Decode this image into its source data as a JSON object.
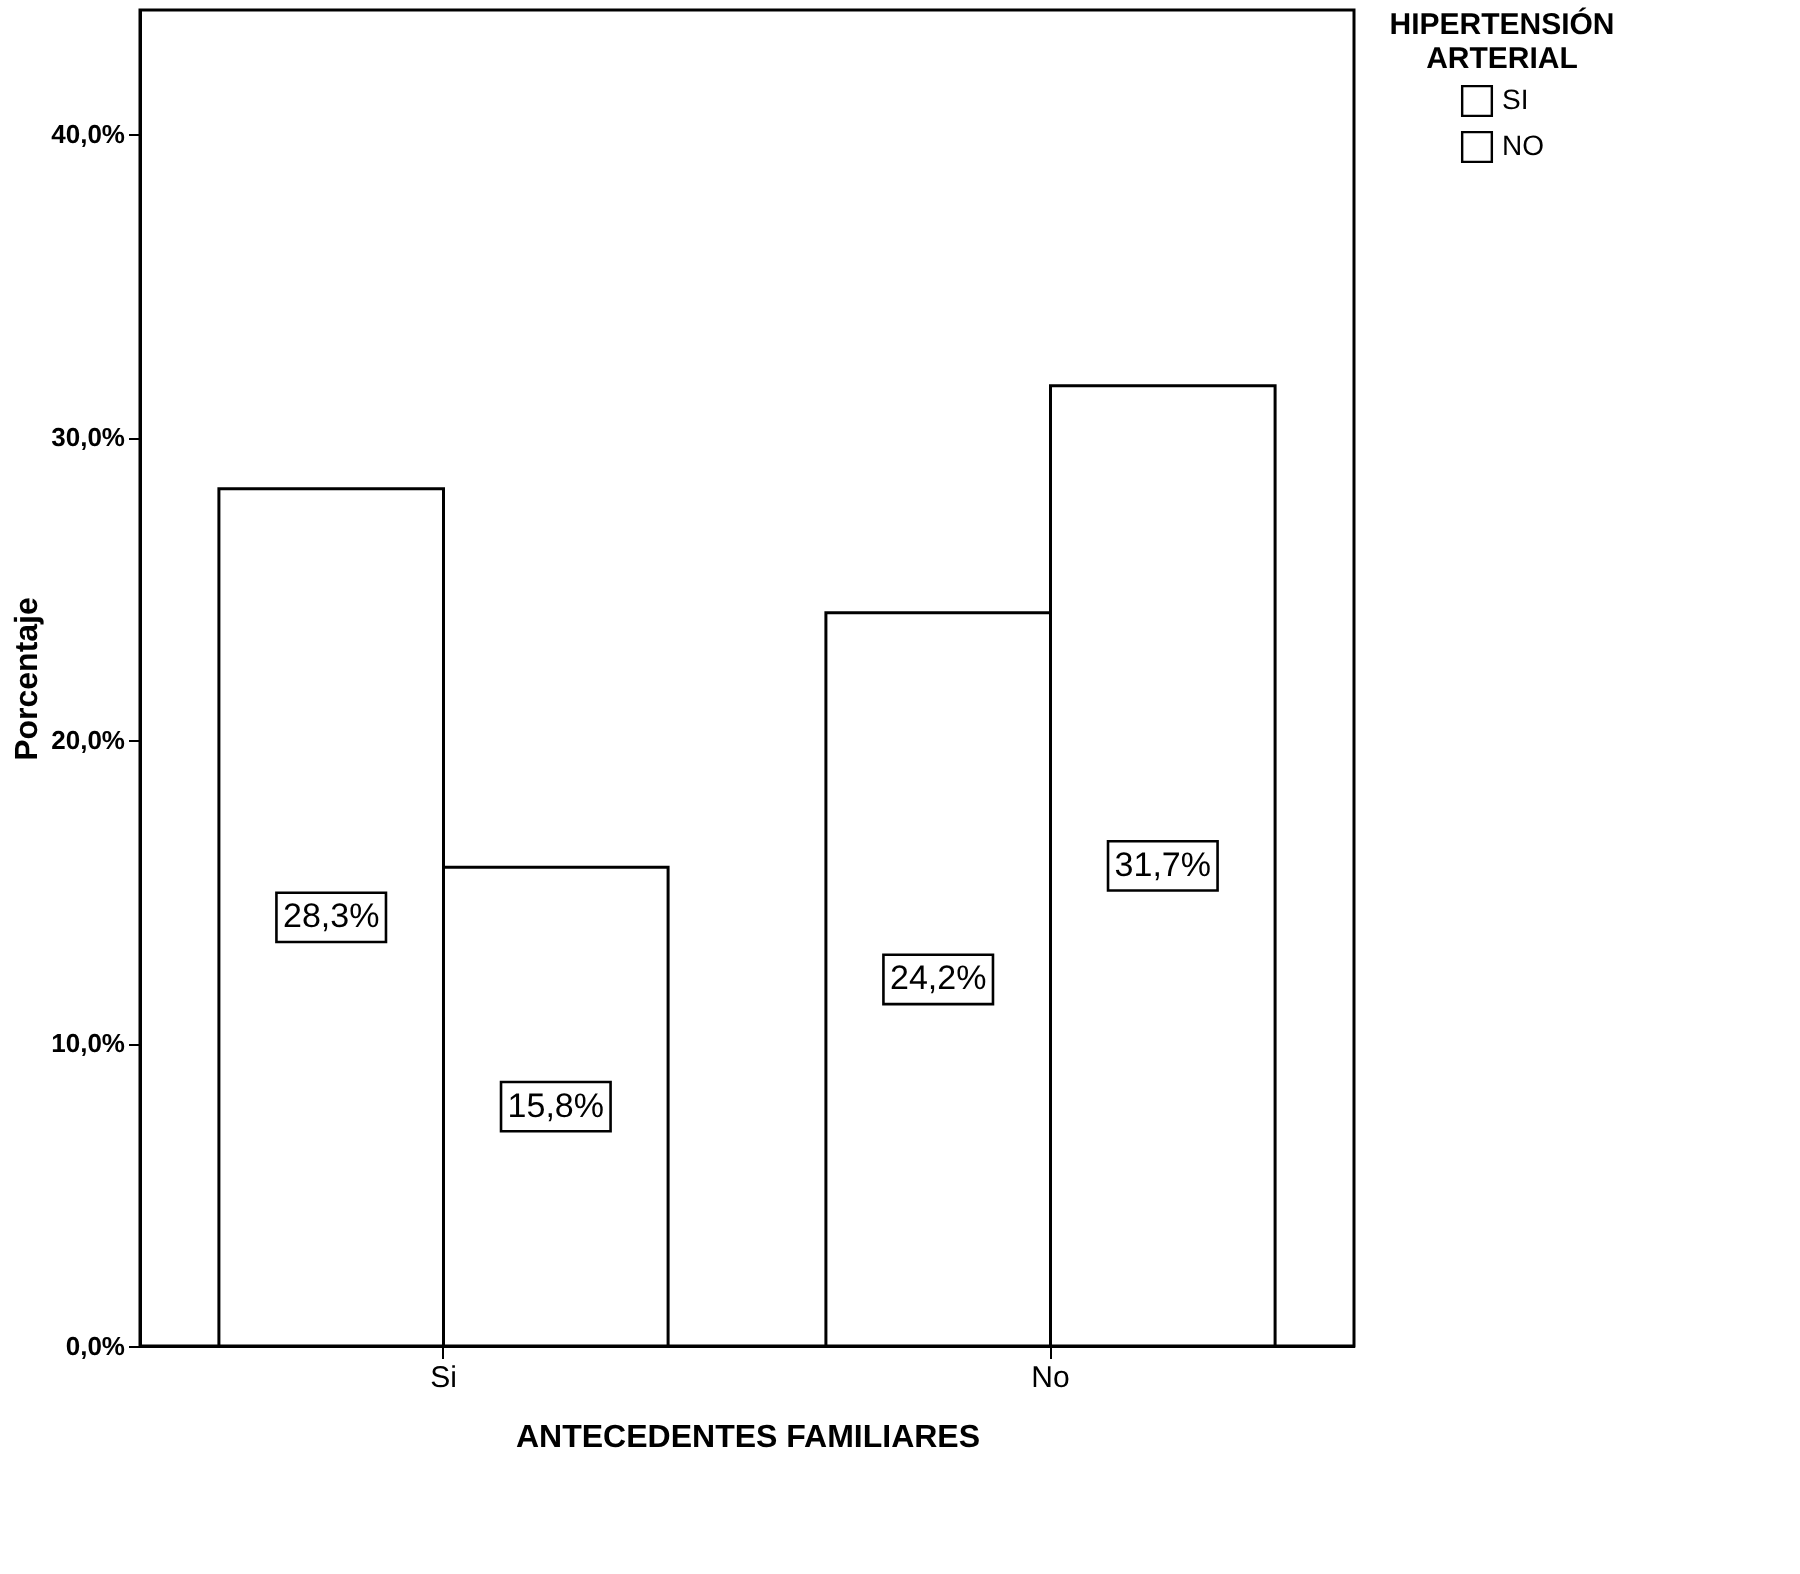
{
  "chart_data": {
    "type": "bar",
    "xlabel": "ANTECEDENTES FAMILIARES",
    "ylabel": "Porcentaje",
    "legend_title": "HIPERTENSIÓN ARTERIAL",
    "categories": [
      "Si",
      "No"
    ],
    "series": [
      {
        "name": "SI",
        "color": "#ffffff",
        "values": [
          28.3,
          24.2
        ],
        "value_labels": [
          "28,3%",
          "24,2%"
        ]
      },
      {
        "name": "NO",
        "color": "#ffffff",
        "values": [
          15.8,
          31.7
        ],
        "value_labels": [
          "15,8%",
          "31,7%"
        ]
      }
    ],
    "ylim": [
      0,
      44.1
    ],
    "yticks": [
      {
        "value": 0,
        "label": "0,0%"
      },
      {
        "value": 10,
        "label": "10,0%"
      },
      {
        "value": 20,
        "label": "20,0%"
      },
      {
        "value": 30,
        "label": "30,0%"
      },
      {
        "value": 40,
        "label": "40,0%"
      }
    ],
    "grid": false,
    "legend": "top right"
  }
}
